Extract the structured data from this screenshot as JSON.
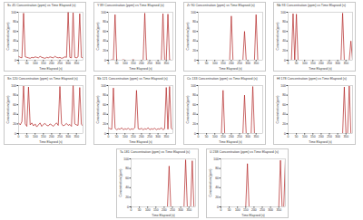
{
  "chart_data": [
    {
      "type": "line",
      "title": "Sc 45 Concentration (ppm) vs Time Elapsed (s)",
      "x_label": "Time Elapsed (s)",
      "y_label": "Concentration (ppm)",
      "color": "#b22222",
      "x": [
        0,
        10,
        20,
        30,
        40,
        50,
        60,
        70,
        80,
        90,
        100,
        110,
        120,
        130,
        140,
        150,
        160,
        170,
        180,
        190,
        200,
        210,
        220,
        230,
        240,
        250,
        260,
        270,
        280,
        290,
        300,
        310,
        320,
        330,
        340,
        350,
        360,
        370,
        380,
        390
      ],
      "values": [
        8,
        6,
        5,
        98,
        7,
        6,
        5,
        4,
        6,
        5,
        7,
        6,
        5,
        8,
        6,
        5,
        4,
        6,
        5,
        7,
        6,
        5,
        8,
        6,
        5,
        6,
        4,
        5,
        7,
        6,
        100,
        6,
        5,
        99,
        6,
        5,
        7,
        97,
        6,
        5
      ],
      "xlim": [
        0,
        390
      ],
      "xticks": [
        0,
        50,
        100,
        150,
        200,
        250,
        300,
        350
      ],
      "ylim": [
        0,
        100
      ],
      "yticks": [
        0,
        20,
        40,
        60,
        80,
        100
      ],
      "grid": false
    },
    {
      "type": "line",
      "title": "Y 89 Concentration (ppm) vs Time Elapsed (s)",
      "x_label": "Time Elapsed (s)",
      "y_label": "Concentration (ppm)",
      "color": "#b22222",
      "x": [
        0,
        10,
        20,
        30,
        40,
        50,
        60,
        70,
        80,
        90,
        100,
        110,
        120,
        130,
        140,
        150,
        160,
        170,
        180,
        190,
        200,
        210,
        220,
        230,
        240,
        250,
        260,
        270,
        280,
        290,
        300,
        310,
        320,
        330,
        340,
        350,
        360,
        370,
        380,
        390
      ],
      "values": [
        0,
        0,
        1,
        0,
        95,
        1,
        0,
        0,
        0,
        1,
        0,
        0,
        0,
        0,
        0,
        1,
        0,
        0,
        0,
        0,
        0,
        0,
        98,
        1,
        0,
        0,
        0,
        0,
        0,
        0,
        0,
        0,
        0,
        97,
        0,
        0,
        96,
        1,
        0,
        0
      ],
      "xlim": [
        0,
        390
      ],
      "xticks": [
        0,
        50,
        100,
        150,
        200,
        250,
        300,
        350
      ],
      "ylim": [
        0,
        100
      ],
      "yticks": [
        0,
        20,
        40,
        60,
        80,
        100
      ],
      "grid": false
    },
    {
      "type": "line",
      "title": "Zr 90 Concentration (ppm) vs Time Elapsed (s)",
      "x_label": "Time Elapsed (s)",
      "y_label": "Concentration (ppm)",
      "color": "#b22222",
      "x": [
        0,
        10,
        20,
        30,
        40,
        50,
        60,
        70,
        80,
        90,
        100,
        110,
        120,
        130,
        140,
        150,
        160,
        170,
        180,
        190,
        200,
        210,
        220,
        230,
        240,
        250,
        260,
        270,
        280,
        290,
        300,
        310,
        320,
        330,
        340,
        350,
        360,
        370,
        380,
        390
      ],
      "values": [
        0,
        0,
        0,
        0,
        0,
        0,
        0,
        0,
        0,
        0,
        0,
        0,
        0,
        0,
        0,
        0,
        0,
        0,
        0,
        0,
        92,
        0,
        0,
        0,
        0,
        0,
        0,
        0,
        60,
        0,
        0,
        0,
        0,
        0,
        0,
        95,
        0,
        0,
        0,
        0
      ],
      "xlim": [
        0,
        390
      ],
      "xticks": [
        0,
        50,
        100,
        150,
        200,
        250,
        300,
        350
      ],
      "ylim": [
        0,
        100
      ],
      "yticks": [
        0,
        20,
        40,
        60,
        80,
        100
      ],
      "grid": false
    },
    {
      "type": "line",
      "title": "Nb 93 Concentration (ppm) vs Time Elapsed (s)",
      "x_label": "Time Elapsed (s)",
      "y_label": "Concentration (ppm)",
      "color": "#b22222",
      "x": [
        0,
        10,
        20,
        30,
        40,
        50,
        60,
        70,
        80,
        90,
        100,
        110,
        120,
        130,
        140,
        150,
        160,
        170,
        180,
        190,
        200,
        210,
        220,
        230,
        240,
        250,
        260,
        270,
        280,
        290,
        300,
        310,
        320,
        330,
        340,
        350,
        360,
        370,
        380,
        390
      ],
      "values": [
        0,
        0,
        0,
        97,
        0,
        96,
        0,
        0,
        0,
        0,
        0,
        0,
        0,
        0,
        0,
        0,
        0,
        0,
        0,
        0,
        0,
        0,
        0,
        0,
        0,
        0,
        0,
        0,
        0,
        0,
        0,
        0,
        0,
        98,
        0,
        0,
        0,
        0,
        40,
        0
      ],
      "xlim": [
        0,
        390
      ],
      "xticks": [
        0,
        50,
        100,
        150,
        200,
        250,
        300,
        350
      ],
      "ylim": [
        0,
        100
      ],
      "yticks": [
        0,
        20,
        40,
        60,
        80,
        100
      ],
      "grid": false
    },
    {
      "type": "line",
      "title": "Sn 120 Concentration (ppm) vs Time Elapsed (s)",
      "x_label": "Time Elapsed (s)",
      "y_label": "Concentration (ppm)",
      "color": "#b22222",
      "x": [
        0,
        10,
        20,
        30,
        40,
        50,
        60,
        70,
        80,
        90,
        100,
        110,
        120,
        130,
        140,
        150,
        160,
        170,
        180,
        190,
        200,
        210,
        220,
        230,
        240,
        250,
        260,
        270,
        280,
        290,
        300,
        310,
        320,
        330,
        340,
        350,
        360,
        370,
        380,
        390
      ],
      "values": [
        22,
        18,
        25,
        99,
        20,
        15,
        97,
        18,
        22,
        16,
        20,
        14,
        18,
        22,
        15,
        19,
        21,
        17,
        16,
        20,
        18,
        15,
        19,
        22,
        17,
        98,
        20,
        16,
        18,
        21,
        17,
        19,
        15,
        100,
        20,
        18,
        17,
        96,
        19,
        16
      ],
      "xlim": [
        0,
        390
      ],
      "xticks": [
        0,
        50,
        100,
        150,
        200,
        250,
        300,
        350
      ],
      "ylim": [
        0,
        100
      ],
      "yticks": [
        0,
        20,
        40,
        60,
        80,
        100
      ],
      "grid": false
    },
    {
      "type": "line",
      "title": "Sb 121 Concentration (ppm) vs Time Elapsed (s)",
      "x_label": "Time Elapsed (s)",
      "y_label": "Concentration (ppm)",
      "color": "#b22222",
      "x": [
        0,
        10,
        20,
        30,
        40,
        50,
        60,
        70,
        80,
        90,
        100,
        110,
        120,
        130,
        140,
        150,
        160,
        170,
        180,
        190,
        200,
        210,
        220,
        230,
        240,
        250,
        260,
        270,
        280,
        290,
        300,
        310,
        320,
        330,
        340,
        350,
        360,
        370,
        380,
        390
      ],
      "values": [
        12,
        10,
        9,
        95,
        11,
        8,
        10,
        9,
        12,
        8,
        10,
        9,
        11,
        8,
        10,
        9,
        12,
        90,
        10,
        9,
        11,
        8,
        10,
        9,
        12,
        8,
        10,
        9,
        11,
        8,
        10,
        9,
        12,
        8,
        10,
        96,
        9,
        98,
        11,
        8
      ],
      "xlim": [
        0,
        390
      ],
      "xticks": [
        0,
        50,
        100,
        150,
        200,
        250,
        300,
        350
      ],
      "ylim": [
        0,
        100
      ],
      "yticks": [
        0,
        20,
        40,
        60,
        80,
        100
      ],
      "grid": false
    },
    {
      "type": "line",
      "title": "Cs 133 Concentration (ppm) vs Time Elapsed (s)",
      "x_label": "Time Elapsed (s)",
      "y_label": "Concentration (ppm)",
      "color": "#b22222",
      "x": [
        0,
        10,
        20,
        30,
        40,
        50,
        60,
        70,
        80,
        90,
        100,
        110,
        120,
        130,
        140,
        150,
        160,
        170,
        180,
        190,
        200,
        210,
        220,
        230,
        240,
        250,
        260,
        270,
        280,
        290,
        300,
        310,
        320,
        330,
        340,
        350,
        360,
        370,
        380,
        390
      ],
      "values": [
        0,
        0,
        0,
        0,
        0,
        0,
        0,
        0,
        0,
        0,
        0,
        0,
        0,
        0,
        0,
        90,
        0,
        0,
        0,
        0,
        0,
        0,
        0,
        0,
        0,
        0,
        0,
        0,
        80,
        0,
        0,
        0,
        0,
        98,
        0,
        0,
        0,
        0,
        0,
        0
      ],
      "xlim": [
        0,
        390
      ],
      "xticks": [
        0,
        50,
        100,
        150,
        200,
        250,
        300,
        350
      ],
      "ylim": [
        0,
        100
      ],
      "yticks": [
        0,
        20,
        40,
        60,
        80,
        100
      ],
      "grid": false
    },
    {
      "type": "line",
      "title": "Hf 178 Concentration (ppm) vs Time Elapsed (s)",
      "x_label": "Time Elapsed (s)",
      "y_label": "Concentration (ppm)",
      "color": "#b22222",
      "x": [
        0,
        10,
        20,
        30,
        40,
        50,
        60,
        70,
        80,
        90,
        100,
        110,
        120,
        130,
        140,
        150,
        160,
        170,
        180,
        190,
        200,
        210,
        220,
        230,
        240,
        250,
        260,
        270,
        280,
        290,
        300,
        310,
        320,
        330,
        340,
        350,
        360,
        370,
        380,
        390
      ],
      "values": [
        0,
        0,
        0,
        0,
        0,
        0,
        0,
        0,
        0,
        0,
        0,
        0,
        0,
        0,
        0,
        0,
        0,
        0,
        0,
        0,
        0,
        0,
        0,
        0,
        0,
        0,
        0,
        0,
        0,
        0,
        0,
        0,
        0,
        0,
        97,
        0,
        0,
        99,
        0,
        0
      ],
      "xlim": [
        0,
        390
      ],
      "xticks": [
        0,
        50,
        100,
        150,
        200,
        250,
        300,
        350
      ],
      "ylim": [
        0,
        100
      ],
      "yticks": [
        0,
        20,
        40,
        60,
        80,
        100
      ],
      "grid": false
    },
    {
      "type": "line",
      "title": "Ta 181 Concentration (ppm) vs Time Elapsed (s)",
      "x_label": "Time Elapsed (s)",
      "y_label": "Concentration (ppm)",
      "color": "#b22222",
      "x": [
        0,
        10,
        20,
        30,
        40,
        50,
        60,
        70,
        80,
        90,
        100,
        110,
        120,
        130,
        140,
        150,
        160,
        170,
        180,
        190,
        200,
        210,
        220,
        230,
        240,
        250,
        260,
        270,
        280,
        290,
        300,
        310,
        320,
        330,
        340,
        350,
        360,
        370,
        380,
        390
      ],
      "values": [
        0,
        0,
        0,
        0,
        0,
        0,
        0,
        0,
        0,
        0,
        0,
        0,
        0,
        0,
        0,
        0,
        0,
        0,
        0,
        0,
        0,
        0,
        0,
        85,
        0,
        0,
        0,
        0,
        0,
        0,
        0,
        0,
        0,
        98,
        0,
        0,
        0,
        96,
        0,
        0
      ],
      "xlim": [
        0,
        390
      ],
      "xticks": [
        0,
        50,
        100,
        150,
        200,
        250,
        300,
        350
      ],
      "ylim": [
        0,
        100
      ],
      "yticks": [
        0,
        20,
        40,
        60,
        80,
        100
      ],
      "grid": false
    },
    {
      "type": "line",
      "title": "U 238 Concentration (ppm) vs Time Elapsed (s)",
      "x_label": "Time Elapsed (s)",
      "y_label": "Concentration (ppm)",
      "color": "#b22222",
      "x": [
        0,
        10,
        20,
        30,
        40,
        50,
        60,
        70,
        80,
        90,
        100,
        110,
        120,
        130,
        140,
        150,
        160,
        170,
        180,
        190,
        200,
        210,
        220,
        230,
        240,
        250,
        260,
        270,
        280,
        290,
        300,
        310,
        320,
        330,
        340,
        350,
        360,
        370,
        380,
        390
      ],
      "values": [
        0,
        0,
        0,
        0,
        0,
        0,
        0,
        0,
        0,
        0,
        0,
        0,
        0,
        0,
        0,
        0,
        90,
        0,
        0,
        0,
        0,
        0,
        0,
        0,
        0,
        0,
        0,
        0,
        0,
        0,
        0,
        0,
        0,
        0,
        0,
        0,
        97,
        0,
        0,
        99
      ],
      "xlim": [
        0,
        390
      ],
      "xticks": [
        0,
        50,
        100,
        150,
        200,
        250,
        300,
        350
      ],
      "ylim": [
        0,
        100
      ],
      "yticks": [
        0,
        20,
        40,
        60,
        80,
        100
      ],
      "grid": false
    }
  ]
}
